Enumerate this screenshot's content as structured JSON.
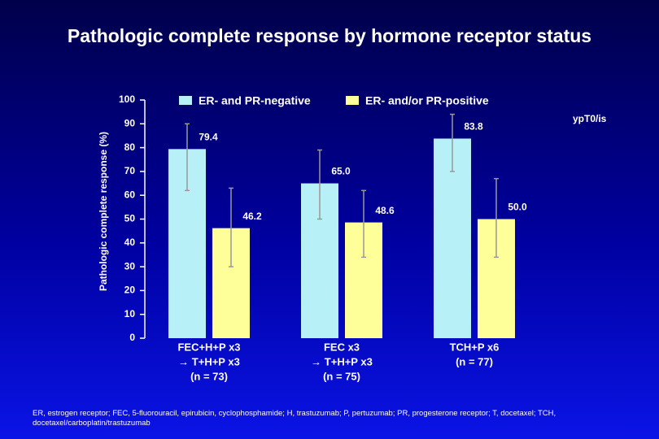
{
  "chart_data": {
    "type": "bar",
    "title": "Pathologic complete response by hormone receptor status",
    "y_label": "Pathologic complete response (%)",
    "categories": [
      [
        "FEC+H+P x3",
        "→ T+H+P x3",
        "(n = 73)"
      ],
      [
        "FEC x3",
        "→ T+H+P x3",
        "(n = 75)"
      ],
      [
        "TCH+P x6",
        "(n = 77)"
      ]
    ],
    "series": [
      {
        "name": "ER- and PR-negative",
        "color": "#b8f0f8",
        "values": [
          79.4,
          65.0,
          83.8
        ],
        "value_labels": [
          "79.4",
          "65.0",
          "83.8"
        ],
        "error_low": [
          62,
          50,
          70
        ],
        "error_high": [
          90,
          79,
          94
        ]
      },
      {
        "name": "ER- and/or PR-positive",
        "color": "#ffff99",
        "values": [
          46.2,
          48.6,
          50.0
        ],
        "value_labels": [
          "46.2",
          "48.6",
          "50.0"
        ],
        "error_low": [
          30,
          34,
          34
        ],
        "error_high": [
          63,
          62,
          67
        ]
      }
    ],
    "ylim": [
      0,
      100
    ],
    "yticks": [
      0,
      10,
      20,
      30,
      40,
      50,
      60,
      70,
      80,
      90,
      100
    ],
    "annotation": "ypT0/is",
    "footnote": "ER, estrogen receptor; FEC, 5-fluorouracil, epirubicin, cyclophosphamide; H, trastuzumab; P, pertuzumab; PR, progesterone receptor; T, docetaxel; TCH, docetaxel/carboplatin/trastuzumab"
  }
}
